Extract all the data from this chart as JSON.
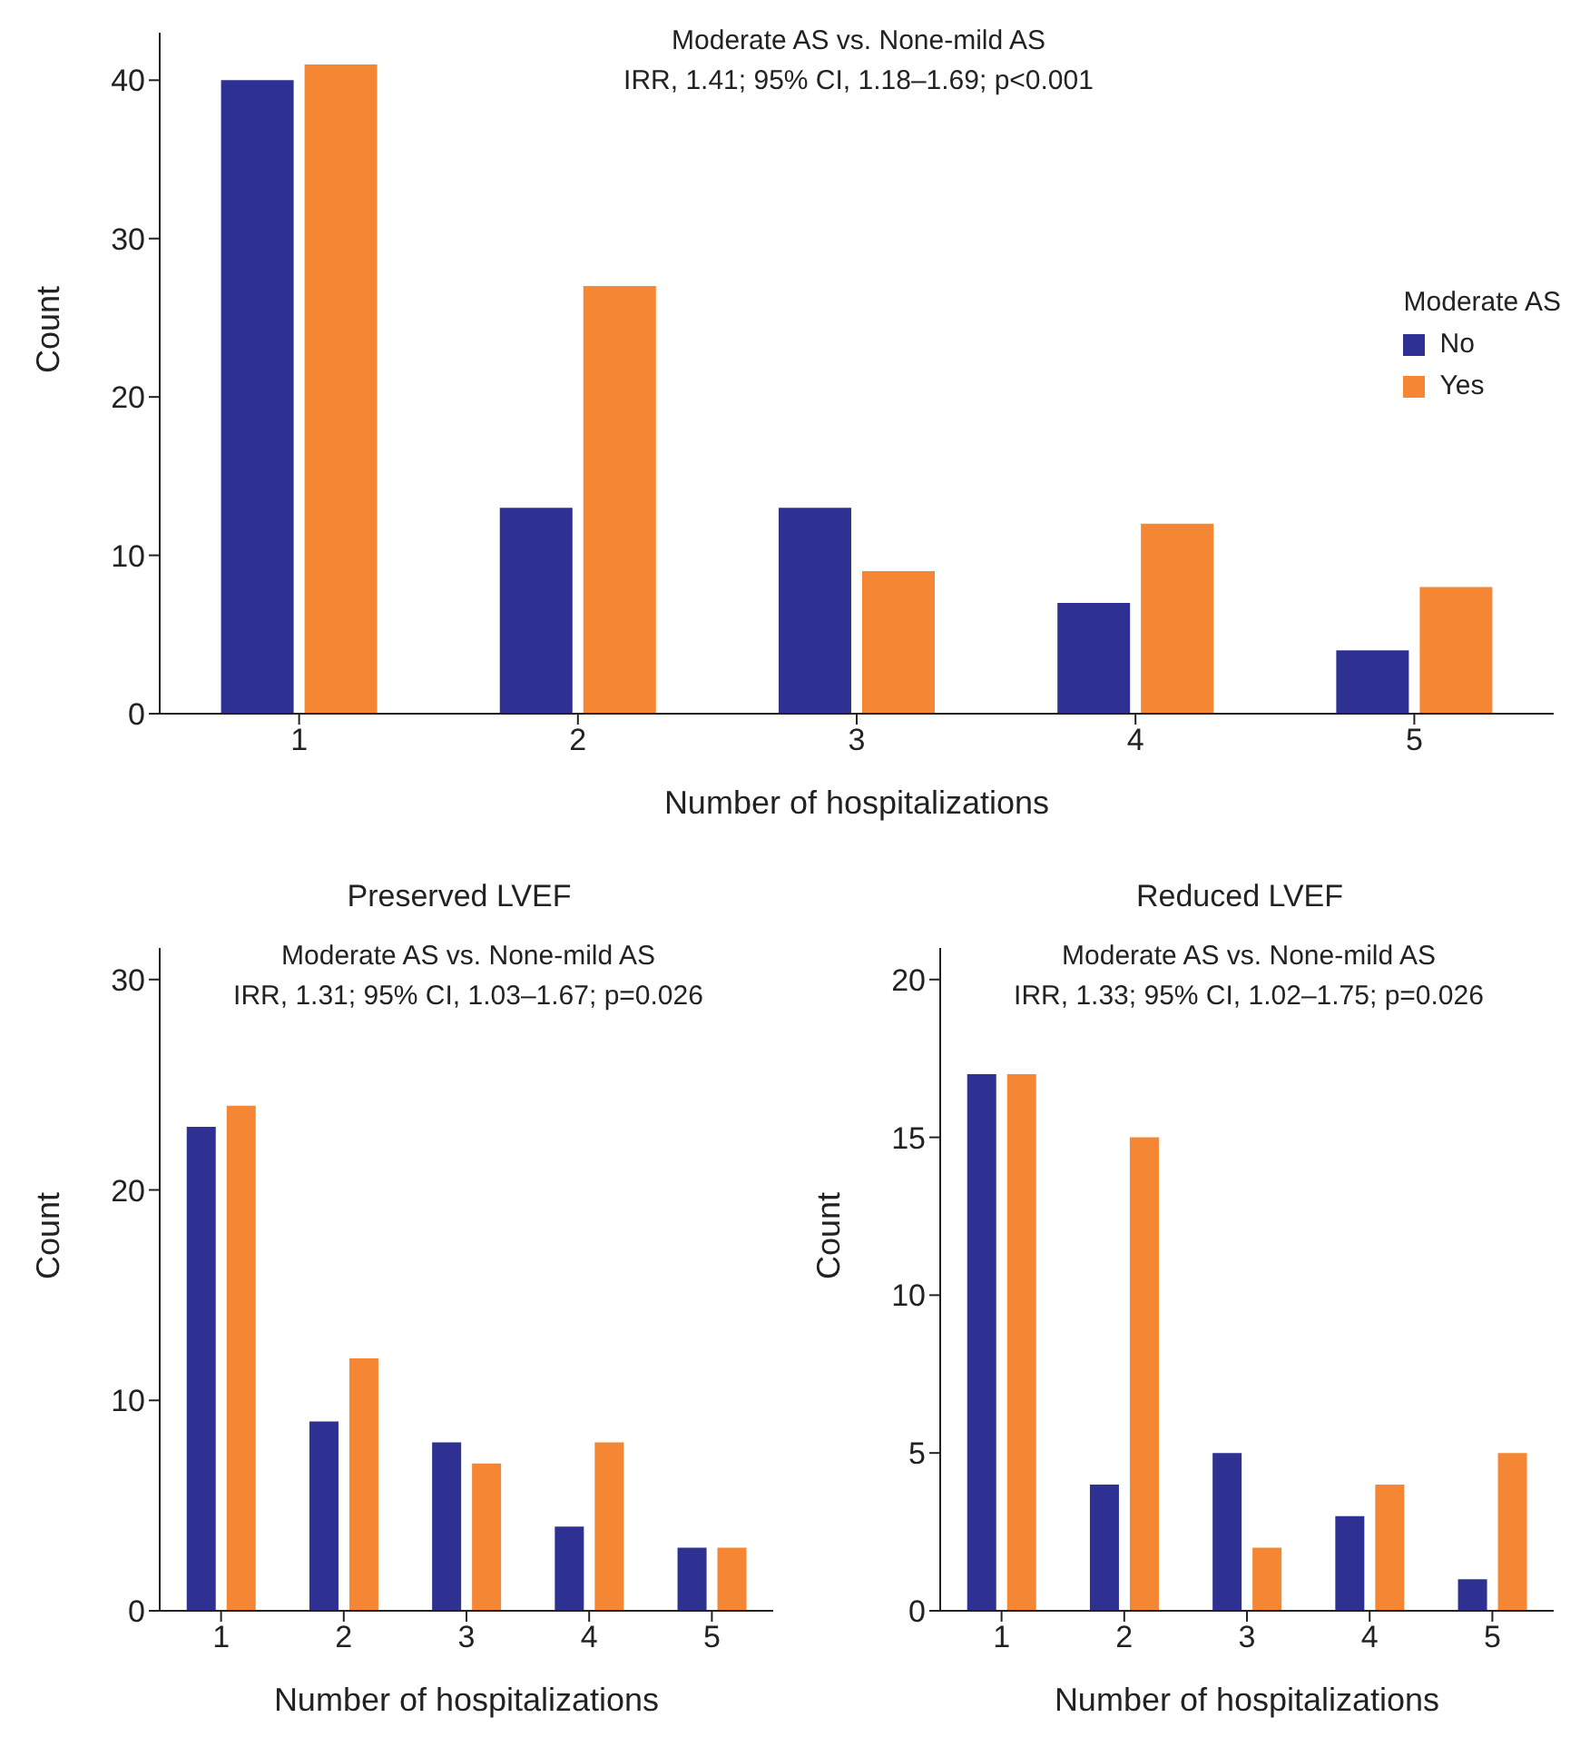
{
  "chart_data": [
    {
      "type": "bar",
      "annotations": [
        "Moderate AS vs. None-mild AS",
        "IRR, 1.41; 95% CI, 1.18–1.69; p<0.001"
      ],
      "xlabel": "Number of hospitalizations",
      "ylabel": "Count",
      "categories": [
        "1",
        "2",
        "3",
        "4",
        "5"
      ],
      "legend_title": "Moderate AS",
      "legend": "right",
      "series": [
        {
          "name": "No",
          "color": "#2e3192",
          "values": [
            40,
            13,
            13,
            7,
            4
          ]
        },
        {
          "name": "Yes",
          "color": "#f58634",
          "values": [
            41,
            27,
            9,
            12,
            8
          ]
        }
      ],
      "ylim": [
        0,
        43
      ],
      "yticks": [
        0,
        10,
        20,
        30,
        40
      ]
    },
    {
      "type": "bar",
      "title": "Preserved LVEF",
      "annotations": [
        "Moderate AS vs. None-mild AS",
        "IRR, 1.31; 95% CI, 1.03–1.67; p=0.026"
      ],
      "xlabel": "Number of hospitalizations",
      "ylabel": "Count",
      "categories": [
        "1",
        "2",
        "3",
        "4",
        "5"
      ],
      "series": [
        {
          "color": "#2e3192",
          "values": [
            23,
            9,
            8,
            4,
            3
          ]
        },
        {
          "color": "#f58634",
          "values": [
            24,
            12,
            7,
            8,
            3
          ]
        }
      ],
      "ylim": [
        0,
        31.5
      ],
      "yticks": [
        0,
        10,
        20,
        30
      ]
    },
    {
      "type": "bar",
      "title": "Reduced LVEF",
      "annotations": [
        "Moderate AS vs. None-mild AS",
        "IRR, 1.33; 95% CI, 1.02–1.75; p=0.026"
      ],
      "xlabel": "Number of hospitalizations",
      "ylabel": "Count",
      "categories": [
        "1",
        "2",
        "3",
        "4",
        "5"
      ],
      "series": [
        {
          "color": "#2e3192",
          "values": [
            17,
            4,
            5,
            3,
            1
          ]
        },
        {
          "color": "#f58634",
          "values": [
            17,
            15,
            2,
            4,
            5
          ]
        }
      ],
      "ylim": [
        0,
        21
      ],
      "yticks": [
        0,
        5,
        10,
        15,
        20
      ]
    }
  ]
}
